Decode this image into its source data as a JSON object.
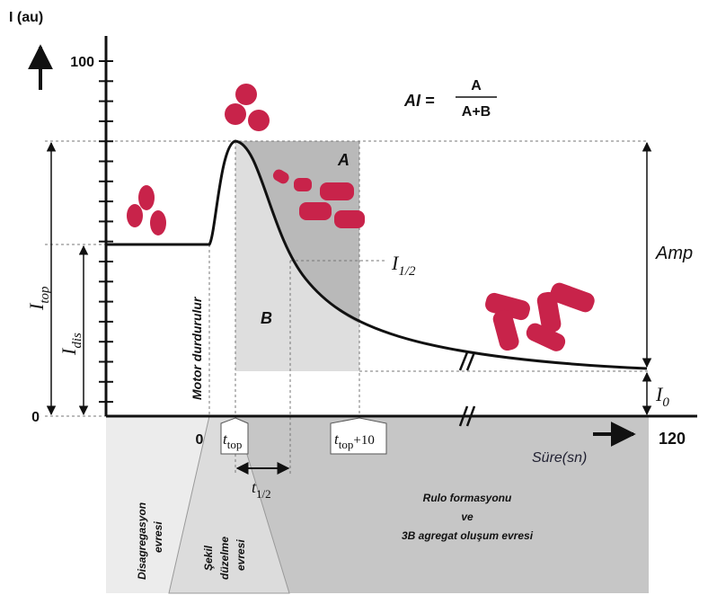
{
  "y_axis": {
    "label": "I (au)",
    "ticks": [
      "100",
      "0"
    ]
  },
  "formula": {
    "lhs": "AI =",
    "numerator": "A",
    "denominator": "A+B"
  },
  "regions": {
    "a": "A",
    "b": "B"
  },
  "labels": {
    "i_top": {
      "main": "I",
      "sub": "top"
    },
    "i_dis": {
      "main": "I",
      "sub": "dis"
    },
    "i_half": {
      "main": "I",
      "sub": "1/2"
    },
    "amp": "Amp",
    "i_0": {
      "main": "I",
      "sub": "0"
    },
    "motor": "Motor durdurulur"
  },
  "x_axis": {
    "start": "0",
    "end": "120",
    "label": "Süre(sn)",
    "t_top": {
      "main": "t",
      "sub": "top"
    },
    "t_top_10": {
      "main": "t",
      "sub": "top",
      "suffix": "+10"
    },
    "t_half": {
      "main": "t",
      "sub": "1/2"
    }
  },
  "phases": [
    {
      "lines": [
        "Disagregasyon",
        "evresi"
      ]
    },
    {
      "lines": [
        "Şekil",
        "düzelme",
        "evresi"
      ]
    },
    {
      "lines": [
        "Rulo formasyonu",
        "ve",
        "3B agregat oluşum evresi"
      ]
    }
  ]
}
